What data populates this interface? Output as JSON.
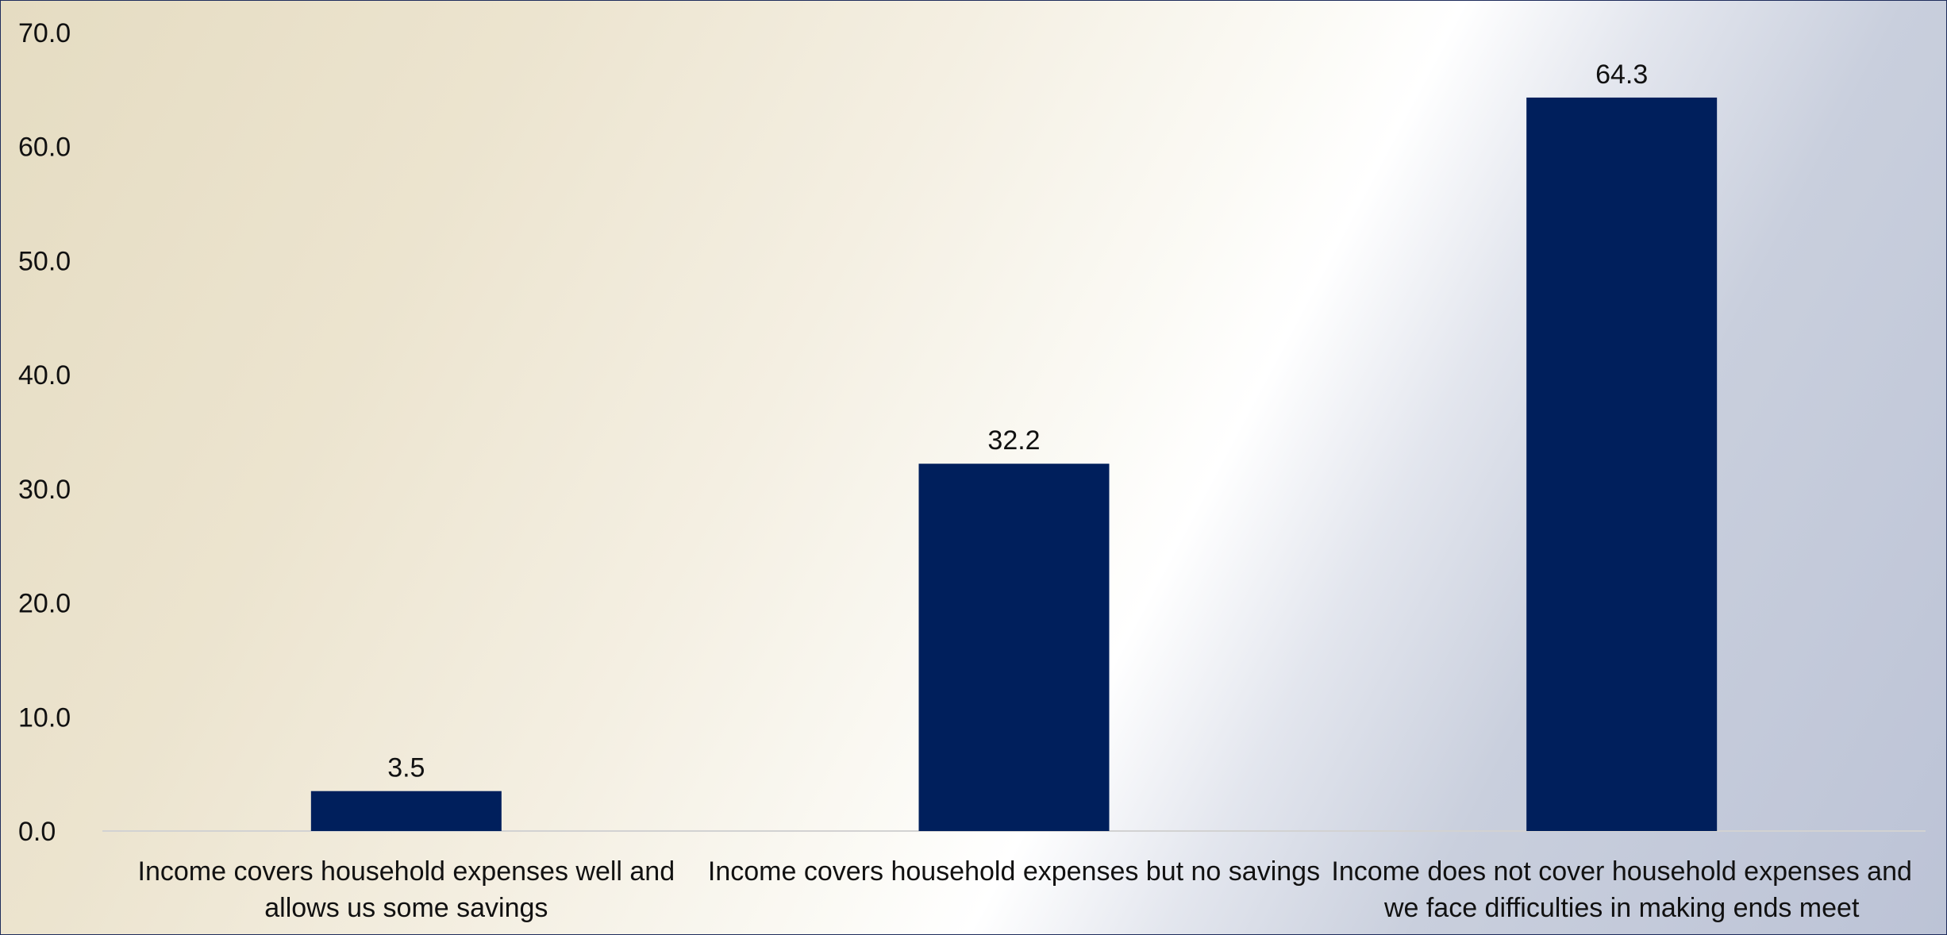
{
  "colors": {
    "bar": "#001f5c",
    "axis_line": "#d2d2d2",
    "text": "#111111"
  },
  "chart_data": {
    "type": "bar",
    "categories": [
      "Income covers household expenses well and allows us some savings",
      "Income covers household expenses but no savings",
      "Income does not cover household expenses and we face difficulties in making ends meet"
    ],
    "category_label_lines": [
      [
        "Income covers household expenses well and",
        "allows us some savings"
      ],
      [
        "Income covers household expenses but no savings"
      ],
      [
        "Income does not cover household expenses and",
        "we face difficulties in making ends meet"
      ]
    ],
    "values": [
      3.5,
      32.2,
      64.3
    ],
    "data_labels": [
      "3.5",
      "32.2",
      "64.3"
    ],
    "title": "",
    "xlabel": "",
    "ylabel": "",
    "ylim": [
      0,
      70
    ],
    "yticks": [
      0,
      10,
      20,
      30,
      40,
      50,
      60,
      70
    ],
    "ytick_labels": [
      "0.0",
      "10.0",
      "20.0",
      "30.0",
      "40.0",
      "50.0",
      "60.0",
      "70.0"
    ],
    "grid": false,
    "legend": "none"
  }
}
